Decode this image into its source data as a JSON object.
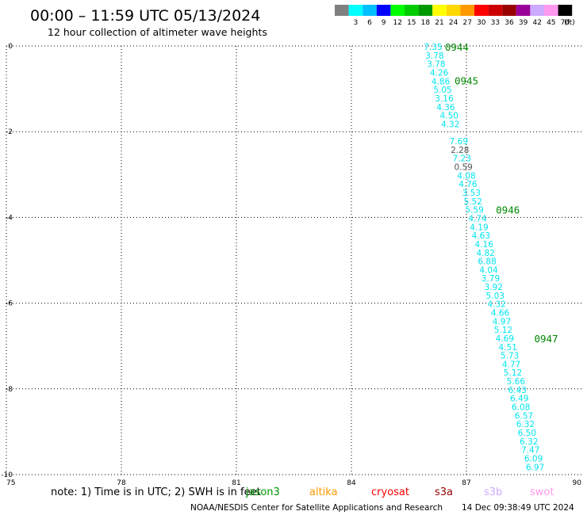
{
  "header": {
    "title": "00:00 – 11:59 UTC 05/13/2024",
    "subtitle": "12 hour collection of altimeter wave heights"
  },
  "colorbar": {
    "unit": "(ft)",
    "segments": [
      {
        "color": "#7f7f7f",
        "label": ""
      },
      {
        "color": "#00ffff",
        "label": "3"
      },
      {
        "color": "#00bfff",
        "label": "6"
      },
      {
        "color": "#0000ff",
        "label": "9"
      },
      {
        "color": "#00ff00",
        "label": "12"
      },
      {
        "color": "#00cc00",
        "label": "15"
      },
      {
        "color": "#009900",
        "label": "18"
      },
      {
        "color": "#ffff00",
        "label": "21"
      },
      {
        "color": "#ffd700",
        "label": "24"
      },
      {
        "color": "#ff9900",
        "label": "27"
      },
      {
        "color": "#ff0000",
        "label": "30"
      },
      {
        "color": "#cc0000",
        "label": "33"
      },
      {
        "color": "#990000",
        "label": "36"
      },
      {
        "color": "#990099",
        "label": "39"
      },
      {
        "color": "#ccaaff",
        "label": "42"
      },
      {
        "color": "#ff99ee",
        "label": "45"
      },
      {
        "color": "#000000",
        "label": "70"
      }
    ]
  },
  "note": {
    "text": "note: 1) Time is in UTC; 2) SWH is in feet",
    "satellites": [
      {
        "name": "jason3",
        "color": "#009900"
      },
      {
        "name": "altika",
        "color": "#ff9900"
      },
      {
        "name": "cryosat",
        "color": "#ff0000"
      },
      {
        "name": "s3a",
        "color": "#990000"
      },
      {
        "name": "s3b",
        "color": "#ccaaff"
      },
      {
        "name": "swot",
        "color": "#ff99ee"
      }
    ]
  },
  "footer": {
    "credit": "NOAA/NESDIS Center for Satellite Applications and Research",
    "timestamp": "14 Dec 09:38:49 UTC 2024"
  },
  "chart_data": {
    "type": "scatter",
    "xlim": [
      75,
      90
    ],
    "ylim": [
      -10,
      0
    ],
    "x_ticks": [
      "75",
      "78",
      "81",
      "84",
      "87",
      "90"
    ],
    "y_ticks": [
      "0",
      "-2",
      "-4",
      "-6",
      "-8",
      "-10"
    ],
    "grid": true,
    "colors": {
      "normal": "#00e5ee",
      "low": "#555555",
      "time": "#008800"
    },
    "points": [
      {
        "x": 86.13,
        "y": -0.02,
        "v": "7.35",
        "c": "normal"
      },
      {
        "x": 86.17,
        "y": -0.22,
        "v": "3.78",
        "c": "normal"
      },
      {
        "x": 86.21,
        "y": -0.42,
        "v": "3.78",
        "c": "normal"
      },
      {
        "x": 86.29,
        "y": -0.62,
        "v": "4.26",
        "c": "normal"
      },
      {
        "x": 86.33,
        "y": -0.82,
        "v": "4.86",
        "c": "normal"
      },
      {
        "x": 86.38,
        "y": -1.02,
        "v": "5.05",
        "c": "normal"
      },
      {
        "x": 86.42,
        "y": -1.22,
        "v": "3.16",
        "c": "normal"
      },
      {
        "x": 86.46,
        "y": -1.42,
        "v": "4.36",
        "c": "normal"
      },
      {
        "x": 86.55,
        "y": -1.62,
        "v": "4.50",
        "c": "normal"
      },
      {
        "x": 86.58,
        "y": -1.82,
        "v": "4.32",
        "c": "normal"
      },
      {
        "x": 86.8,
        "y": -2.22,
        "v": "7.69",
        "c": "normal"
      },
      {
        "x": 86.83,
        "y": -2.42,
        "v": "2.28",
        "c": "low"
      },
      {
        "x": 86.88,
        "y": -2.62,
        "v": "7.23",
        "c": "normal"
      },
      {
        "x": 86.92,
        "y": -2.82,
        "v": "0.59",
        "c": "low"
      },
      {
        "x": 87.0,
        "y": -3.02,
        "v": "4.08",
        "c": "normal"
      },
      {
        "x": 87.04,
        "y": -3.22,
        "v": "4.76",
        "c": "normal"
      },
      {
        "x": 87.13,
        "y": -3.42,
        "v": "3.53",
        "c": "normal"
      },
      {
        "x": 87.17,
        "y": -3.62,
        "v": "5.52",
        "c": "normal"
      },
      {
        "x": 87.21,
        "y": -3.82,
        "v": "5.59",
        "c": "normal"
      },
      {
        "x": 87.29,
        "y": -4.02,
        "v": "4.74",
        "c": "normal"
      },
      {
        "x": 87.33,
        "y": -4.22,
        "v": "4.19",
        "c": "normal"
      },
      {
        "x": 87.38,
        "y": -4.42,
        "v": "4.63",
        "c": "normal"
      },
      {
        "x": 87.46,
        "y": -4.62,
        "v": "4.16",
        "c": "normal"
      },
      {
        "x": 87.5,
        "y": -4.82,
        "v": "4.82",
        "c": "normal"
      },
      {
        "x": 87.54,
        "y": -5.02,
        "v": "6.88",
        "c": "normal"
      },
      {
        "x": 87.58,
        "y": -5.22,
        "v": "4.04",
        "c": "normal"
      },
      {
        "x": 87.63,
        "y": -5.42,
        "v": "3.79",
        "c": "normal"
      },
      {
        "x": 87.71,
        "y": -5.62,
        "v": "3.92",
        "c": "normal"
      },
      {
        "x": 87.75,
        "y": -5.82,
        "v": "5.03",
        "c": "normal"
      },
      {
        "x": 87.79,
        "y": -6.02,
        "v": "4.32",
        "c": "normal"
      },
      {
        "x": 87.88,
        "y": -6.22,
        "v": "4.66",
        "c": "normal"
      },
      {
        "x": 87.92,
        "y": -6.42,
        "v": "4.97",
        "c": "normal"
      },
      {
        "x": 87.96,
        "y": -6.62,
        "v": "5.12",
        "c": "normal"
      },
      {
        "x": 88.0,
        "y": -6.82,
        "v": "4.69",
        "c": "normal"
      },
      {
        "x": 88.08,
        "y": -7.02,
        "v": "4.51",
        "c": "normal"
      },
      {
        "x": 88.13,
        "y": -7.22,
        "v": "5.73",
        "c": "normal"
      },
      {
        "x": 88.17,
        "y": -7.42,
        "v": "4.77",
        "c": "normal"
      },
      {
        "x": 88.21,
        "y": -7.62,
        "v": "5.12",
        "c": "normal"
      },
      {
        "x": 88.29,
        "y": -7.82,
        "v": "5.66",
        "c": "normal"
      },
      {
        "x": 88.33,
        "y": -8.02,
        "v": "6.43",
        "c": "normal"
      },
      {
        "x": 88.38,
        "y": -8.22,
        "v": "6.49",
        "c": "normal"
      },
      {
        "x": 88.42,
        "y": -8.42,
        "v": "6.08",
        "c": "normal"
      },
      {
        "x": 88.5,
        "y": -8.62,
        "v": "6.57",
        "c": "normal"
      },
      {
        "x": 88.54,
        "y": -8.82,
        "v": "6.32",
        "c": "normal"
      },
      {
        "x": 88.58,
        "y": -9.02,
        "v": "6.50",
        "c": "normal"
      },
      {
        "x": 88.63,
        "y": -9.22,
        "v": "6.32",
        "c": "normal"
      },
      {
        "x": 88.67,
        "y": -9.42,
        "v": "7.47",
        "c": "normal"
      },
      {
        "x": 88.75,
        "y": -9.62,
        "v": "6.09",
        "c": "normal"
      },
      {
        "x": 88.79,
        "y": -9.82,
        "v": "6.97",
        "c": "normal"
      }
    ],
    "time_labels": [
      {
        "x": 86.75,
        "y": -0.02,
        "v": "0944"
      },
      {
        "x": 87.0,
        "y": -0.8,
        "v": "0945"
      },
      {
        "x": 88.08,
        "y": -3.82,
        "v": "0946"
      },
      {
        "x": 89.08,
        "y": -6.82,
        "v": "0947"
      }
    ]
  }
}
